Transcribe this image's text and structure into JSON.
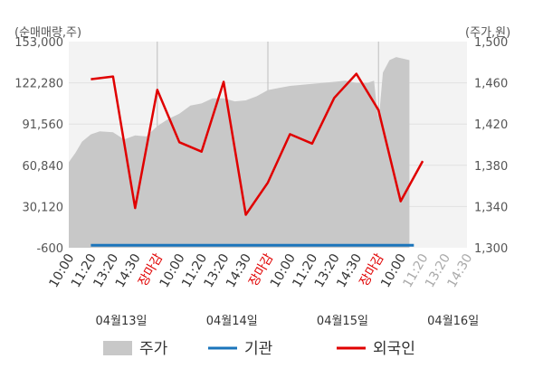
{
  "chart_data": {
    "type": "line",
    "left_axis": {
      "unit": "(순매매량,주)",
      "ticks": [
        "153,000",
        "122,280",
        "91,560",
        "60,840",
        "30,120",
        "-600"
      ],
      "values": [
        153000,
        122280,
        91560,
        60840,
        30120,
        -600
      ],
      "ylim": [
        -600,
        153000
      ]
    },
    "right_axis": {
      "unit": "(주가,원)",
      "ticks": [
        "1,500",
        "1,460",
        "1,420",
        "1,380",
        "1,340",
        "1,300"
      ],
      "values": [
        1500,
        1460,
        1420,
        1380,
        1340,
        1300
      ],
      "ylim": [
        1300,
        1500
      ]
    },
    "x_ticks": [
      {
        "label": "10:00",
        "color": "#333333"
      },
      {
        "label": "11:20",
        "color": "#333333"
      },
      {
        "label": "13:20",
        "color": "#333333"
      },
      {
        "label": "14:30",
        "color": "#333333"
      },
      {
        "label": "장마감",
        "color": "#e00000"
      },
      {
        "label": "10:00",
        "color": "#333333"
      },
      {
        "label": "11:20",
        "color": "#333333"
      },
      {
        "label": "13:20",
        "color": "#333333"
      },
      {
        "label": "14:30",
        "color": "#333333"
      },
      {
        "label": "장마감",
        "color": "#e00000"
      },
      {
        "label": "10:00",
        "color": "#333333"
      },
      {
        "label": "11:20",
        "color": "#333333"
      },
      {
        "label": "13:20",
        "color": "#333333"
      },
      {
        "label": "14:30",
        "color": "#333333"
      },
      {
        "label": "장마감",
        "color": "#e00000"
      },
      {
        "label": "10:00",
        "color": "#333333"
      },
      {
        "label": "11:20",
        "color": "#aaaaaa"
      },
      {
        "label": "13:20",
        "color": "#aaaaaa"
      },
      {
        "label": "14:30",
        "color": "#aaaaaa"
      }
    ],
    "dates": [
      "04월13일",
      "04월14일",
      "04월15일",
      "04월16일"
    ],
    "series": [
      {
        "name": "주가",
        "axis": "right",
        "color": "#c8c8c8",
        "style": "area",
        "x": [
          0,
          0.3,
          0.6,
          1.0,
          1.4,
          2.0,
          2.5,
          3.0,
          3.5,
          4.0,
          4.5,
          5.0,
          5.5,
          6.0,
          6.5,
          7.0,
          7.5,
          8.0,
          8.5,
          9.0,
          9.5,
          10.0,
          10.5,
          11.0,
          11.5,
          12.0,
          12.5,
          13.0,
          13.5,
          13.8,
          14.0,
          14.2,
          14.5,
          14.8,
          15.2,
          15.4
        ],
        "values": [
          1383,
          1392,
          1403,
          1410,
          1413,
          1412,
          1405,
          1409,
          1408,
          1418,
          1425,
          1430,
          1438,
          1440,
          1445,
          1445,
          1442,
          1443,
          1447,
          1453,
          1455,
          1457,
          1458,
          1459,
          1460,
          1461,
          1462,
          1460,
          1460,
          1462,
          1421,
          1470,
          1482,
          1485,
          1483,
          1482
        ]
      },
      {
        "name": "기관",
        "axis": "left",
        "color": "#1b75bb",
        "style": "line",
        "x": [
          1,
          15.6
        ],
        "values": [
          1200,
          1200
        ]
      },
      {
        "name": "외국인",
        "axis": "left",
        "color": "#e00000",
        "style": "line",
        "x": [
          1,
          2,
          3,
          4,
          5,
          6,
          7,
          8,
          9,
          10,
          11,
          12,
          13,
          14,
          15,
          16
        ],
        "values": [
          125000,
          127000,
          29000,
          117000,
          78000,
          71000,
          123000,
          24000,
          48000,
          84000,
          77000,
          111000,
          129000,
          102000,
          34000,
          64000
        ]
      }
    ],
    "legend": [
      {
        "label": "주가",
        "color": "#c8c8c8",
        "kind": "box"
      },
      {
        "label": "기관",
        "color": "#1b75bb",
        "kind": "line"
      },
      {
        "label": "외국인",
        "color": "#e00000",
        "kind": "line"
      }
    ],
    "grid": true,
    "legend_position": "bottom"
  }
}
